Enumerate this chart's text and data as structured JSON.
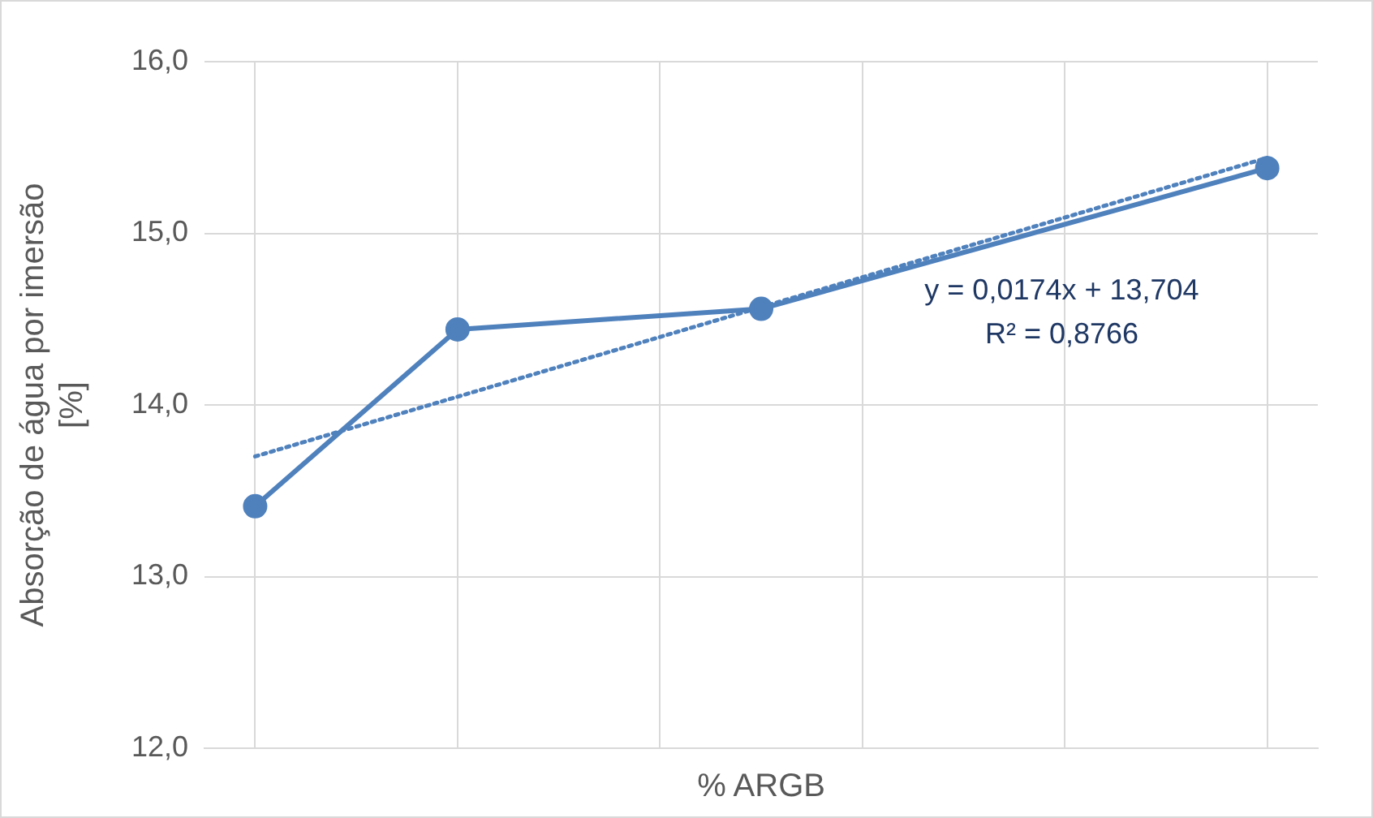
{
  "chart_data": {
    "type": "line",
    "xlabel": "% ARGB",
    "ylabel": "Absorção de água por imersão [%]",
    "categories": [
      null,
      null,
      null,
      null,
      null,
      null,
      null,
      null,
      null,
      null,
      null
    ],
    "ylim": [
      12,
      16
    ],
    "yticks": [
      {
        "value": 12,
        "label": "12,0"
      },
      {
        "value": 13,
        "label": "13,0"
      },
      {
        "value": 14,
        "label": "14,0"
      },
      {
        "value": 15,
        "label": "15,0"
      },
      {
        "value": 16,
        "label": "16,0"
      }
    ],
    "tick_labels": "y",
    "grid": true,
    "legend": false,
    "series": [
      {
        "color": "#4f81bd",
        "values": [
          13.41,
          null,
          14.44,
          null,
          null,
          14.56,
          null,
          null,
          null,
          null,
          15.38
        ],
        "marker": "circle",
        "line_style": "solid"
      },
      {
        "color": "#4f81bd",
        "values": [
          13.7,
          null,
          null,
          null,
          null,
          null,
          null,
          null,
          null,
          null,
          15.44
        ],
        "marker": "none",
        "line_style": "dotted"
      }
    ],
    "annotations": [
      "y = 0,0174x + 13,704",
      "R² = 0,8766"
    ]
  }
}
